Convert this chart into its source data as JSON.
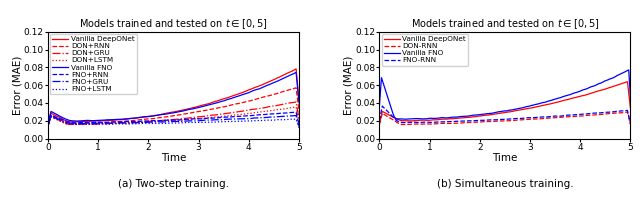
{
  "title": "Models trained and tested on $t \\in [0, 5]$",
  "xlabel": "Time",
  "ylabel": "Error (MAE)",
  "xlim": [
    0,
    5
  ],
  "ylim": [
    0,
    0.12
  ],
  "yticks": [
    0.0,
    0.02,
    0.04,
    0.06,
    0.08,
    0.1,
    0.12
  ],
  "xticks": [
    0,
    1,
    2,
    3,
    4,
    5
  ],
  "caption_a": "(a) Two-step training.",
  "caption_b": "(b) Simultaneous training.",
  "legend_left": [
    {
      "label": "Vanilla DeepONet",
      "color": "red",
      "ls": "-"
    },
    {
      "label": "DON+RNN",
      "color": "red",
      "ls": "--"
    },
    {
      "label": "DON+GRU",
      "color": "red",
      "ls": "-."
    },
    {
      "label": "DON+LSTM",
      "color": "red",
      "ls": ":"
    },
    {
      "label": "Vanilla FNO",
      "color": "blue",
      "ls": "-"
    },
    {
      "label": "FNO+RNN",
      "color": "blue",
      "ls": "--"
    },
    {
      "label": "FNO+GRU",
      "color": "blue",
      "ls": "-."
    },
    {
      "label": "FNO+LSTM",
      "color": "blue",
      "ls": ":"
    }
  ],
  "legend_right": [
    {
      "label": "Vanilla DeepONet",
      "color": "red",
      "ls": "-"
    },
    {
      "label": "DON-RNN",
      "color": "red",
      "ls": "--"
    },
    {
      "label": "Vanilla FNO",
      "color": "blue",
      "ls": "-"
    },
    {
      "label": "FNO-RNN",
      "color": "blue",
      "ls": "--"
    }
  ]
}
